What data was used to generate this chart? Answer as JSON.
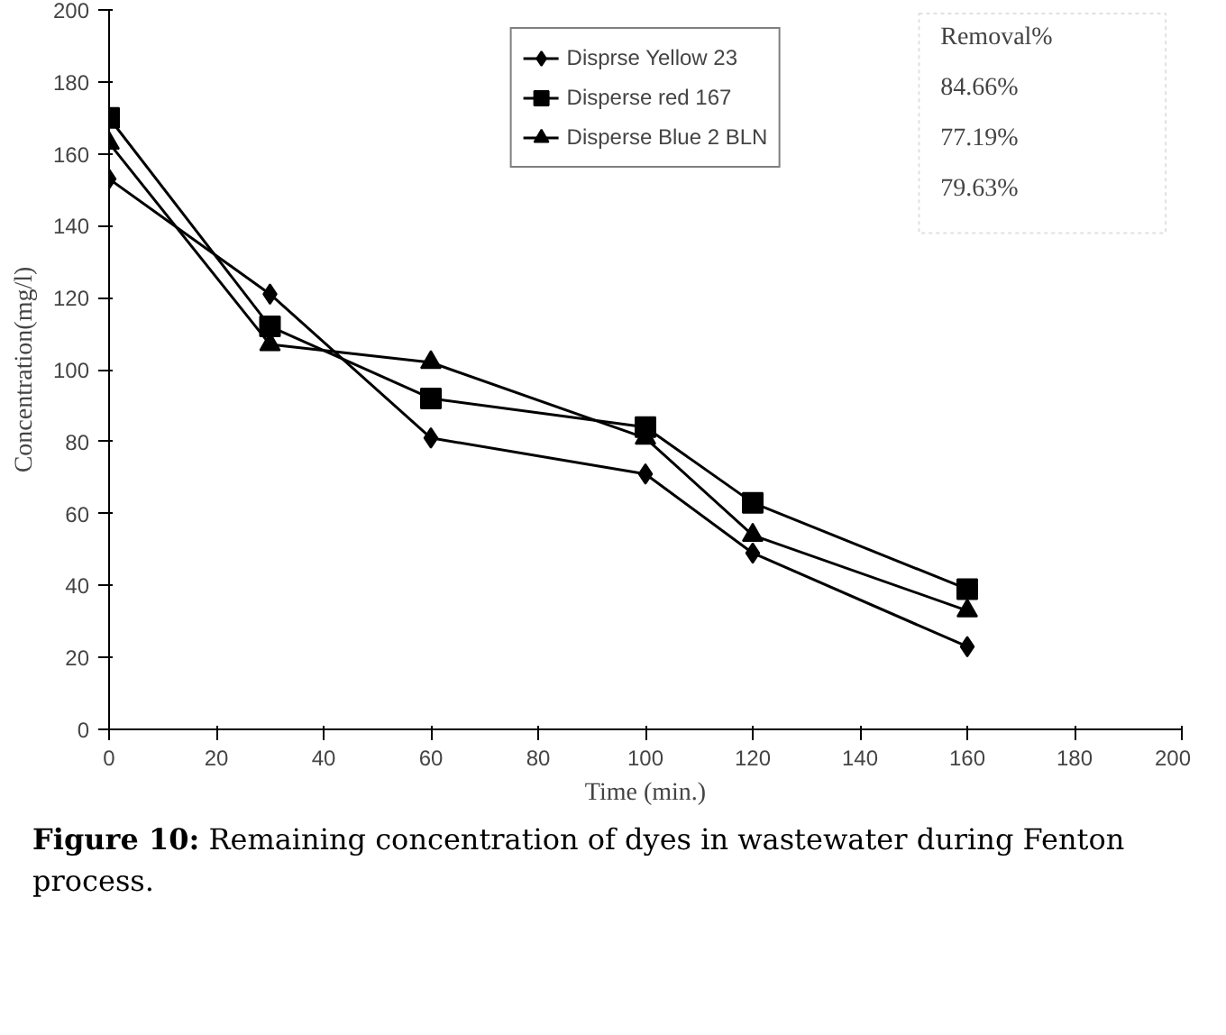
{
  "chart_data": {
    "type": "line",
    "xlabel": "Time (min.)",
    "ylabel": "Concentration(mg/l)",
    "x": [
      0,
      30,
      60,
      100,
      120,
      160
    ],
    "series": [
      {
        "name": "Disprse Yellow 23",
        "color": "#000000",
        "marker": "diamond",
        "values": [
          153,
          121,
          81,
          71,
          49,
          23
        ]
      },
      {
        "name": "Disperse red 167",
        "color": "#000000",
        "marker": "square",
        "values": [
          170,
          112,
          92,
          84,
          63,
          39
        ]
      },
      {
        "name": "Disperse Blue 2 BLN",
        "color": "#000000",
        "marker": "triangle",
        "values": [
          163,
          107,
          102,
          81,
          54,
          33
        ]
      }
    ],
    "xlim": [
      0,
      200
    ],
    "xticks": [
      0,
      20,
      40,
      60,
      80,
      100,
      120,
      140,
      160,
      180,
      200
    ],
    "ylim": [
      0,
      200
    ],
    "yticks": [
      0,
      20,
      40,
      60,
      80,
      100,
      120,
      140,
      160,
      180,
      200
    ],
    "grid": false,
    "legend": "top",
    "annotations": [
      "Removal%",
      "84.66%",
      "77.19%",
      "79.63%",
      "Figure 10: Remaining concentration of dyes in wastewater during Fenton process."
    ]
  }
}
